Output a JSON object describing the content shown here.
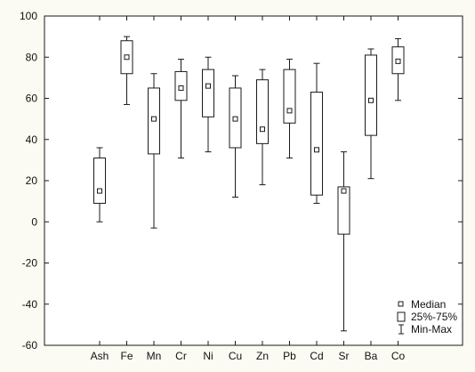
{
  "chart_data": {
    "type": "boxplot",
    "title": "",
    "xlabel": "",
    "ylabel": "",
    "ylim": [
      -60,
      100
    ],
    "yticks": [
      -60,
      -40,
      -20,
      0,
      20,
      40,
      60,
      80,
      100
    ],
    "grid": false,
    "legend_position": "bottom-right",
    "categories": [
      "Ash",
      "Fe",
      "Mn",
      "Cr",
      "Ni",
      "Cu",
      "Zn",
      "Pb",
      "Cd",
      "Sr",
      "Ba",
      "Co"
    ],
    "series": [
      {
        "name": "Min-Max",
        "min": [
          0,
          57,
          -3,
          31,
          34,
          12,
          18,
          31,
          9,
          -53,
          21,
          59
        ],
        "max": [
          36,
          90,
          72,
          79,
          80,
          71,
          74,
          79,
          77,
          34,
          84,
          89
        ]
      },
      {
        "name": "25%-75%",
        "q1": [
          9,
          72,
          33,
          59,
          51,
          36,
          38,
          48,
          13,
          -6,
          42,
          72
        ],
        "q3": [
          31,
          88,
          65,
          73,
          74,
          65,
          69,
          74,
          63,
          17,
          81,
          85
        ]
      },
      {
        "name": "Median",
        "values": [
          15,
          80,
          50,
          65,
          66,
          50,
          45,
          54,
          35,
          15,
          59,
          78
        ]
      }
    ],
    "legend": [
      {
        "label": "Median",
        "symbol": "small-square"
      },
      {
        "label": "25%-75%",
        "symbol": "box"
      },
      {
        "label": "Min-Max",
        "symbol": "whisker"
      }
    ],
    "colors": {
      "background": "#fbfaf3",
      "plot_background": "#ffffff",
      "stroke": "#1a1a1a",
      "median_fill": "#ffffff"
    }
  }
}
